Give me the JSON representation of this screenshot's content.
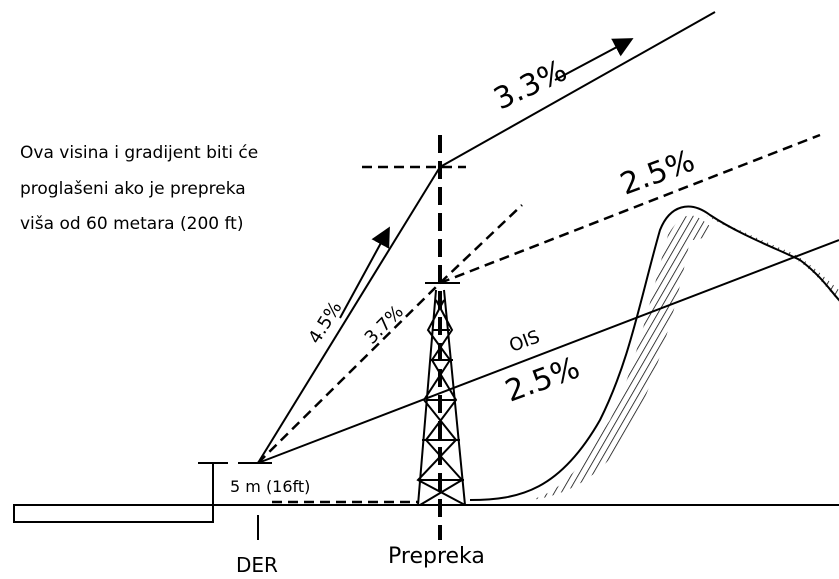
{
  "note": {
    "lines": [
      "Ova visina i gradijent biti će",
      "proglašeni ako je prepreka",
      "viša od 60 metara (200 ft)"
    ]
  },
  "labels": {
    "climb_upper": "3.3%",
    "dashed_upper": "2.5%",
    "climb_steep": "4.5%",
    "dashed_steep": "3.7%",
    "ois": "OIS",
    "ois_gradient": "2.5%",
    "height": "5 m (16ft)",
    "der": "DER",
    "obstacle": "Prepreka"
  }
}
